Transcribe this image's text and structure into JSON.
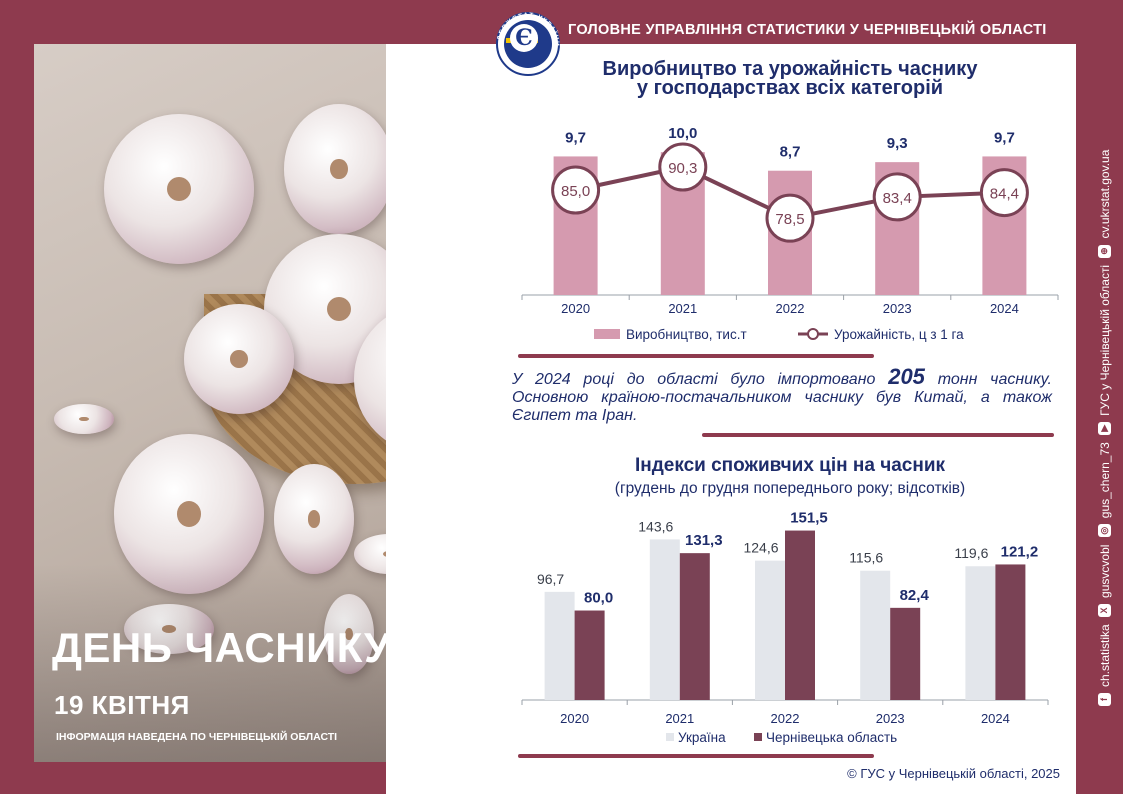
{
  "header": {
    "org_title": "ГОЛОВНЕ УПРАВЛІННЯ СТАТИСТИКИ У ЧЕРНІВЕЦЬКІЙ ОБЛАСТІ",
    "logo_text": "ДЕРЖСТАТ УКРАЇНИ",
    "logo_mark": "Є"
  },
  "poster": {
    "title": "ДЕНЬ ЧАСНИКУ",
    "date": "19 КВІТНЯ",
    "note": "ІНФОРМАЦІЯ НАВЕДЕНА ПО ЧЕРНІВЕЦЬКІЙ ОБЛАСТІ"
  },
  "import_text": {
    "before": "У 2024 році до області було імпортовано ",
    "amount": "205",
    "after": " тонн часнику. Основною країною-постачальником часнику був Китай, а також Єгипет та Іран."
  },
  "sidebar": {
    "items": [
      {
        "icon": "facebook-icon",
        "text": "ch.statistika"
      },
      {
        "icon": "x-icon",
        "text": "gusvcvobl"
      },
      {
        "icon": "instagram-icon",
        "text": "gus_chern_73"
      },
      {
        "icon": "youtube-icon",
        "text": "ГУС у Чернівецькій області"
      },
      {
        "icon": "globe-icon",
        "text": "cv.ukrstat.gov.ua"
      }
    ]
  },
  "footer": {
    "copyright": "© ГУС у Чернівецькій області, 2025"
  },
  "colors": {
    "brand": "#8e3a4e",
    "production_bar": "#d59aaf",
    "yield_line": "#7a4255",
    "ukraine_bar": "#e3e6eb",
    "region_bar": "#7a4255",
    "title_text": "#1f2d6b"
  },
  "chart_data": [
    {
      "type": "bar",
      "title_line1": "Виробництво та урожайність часнику",
      "title_line2": "у господарствах всіх категорій",
      "categories": [
        "2020",
        "2021",
        "2022",
        "2023",
        "2024"
      ],
      "series": [
        {
          "name": "Виробництво, тис.т",
          "kind": "bar",
          "values": [
            9.7,
            10.0,
            8.7,
            9.3,
            9.7
          ],
          "labels": [
            "9,7",
            "10,0",
            "8,7",
            "9,3",
            "9,7"
          ]
        },
        {
          "name": "Урожайність, ц з 1 га",
          "kind": "line",
          "values": [
            85.0,
            90.3,
            78.5,
            83.4,
            84.4
          ],
          "labels": [
            "85,0",
            "90,3",
            "78,5",
            "83,4",
            "84,4"
          ]
        }
      ],
      "legend": "bottom"
    },
    {
      "type": "bar",
      "title": "Індекси споживчих цін на часник",
      "subtitle": "(грудень до грудня попереднього року; відсотків)",
      "categories": [
        "2020",
        "2021",
        "2022",
        "2023",
        "2024"
      ],
      "series": [
        {
          "name": "Україна",
          "values": [
            96.7,
            143.6,
            124.6,
            115.6,
            119.6
          ],
          "labels": [
            "96,7",
            "143,6",
            "124,6",
            "115,6",
            "119,6"
          ]
        },
        {
          "name": "Чернівецька область",
          "values": [
            80.0,
            131.3,
            151.5,
            82.4,
            121.2
          ],
          "labels": [
            "80,0",
            "131,3",
            "151,5",
            "82,4",
            "121,2"
          ]
        }
      ],
      "legend": "bottom"
    }
  ]
}
